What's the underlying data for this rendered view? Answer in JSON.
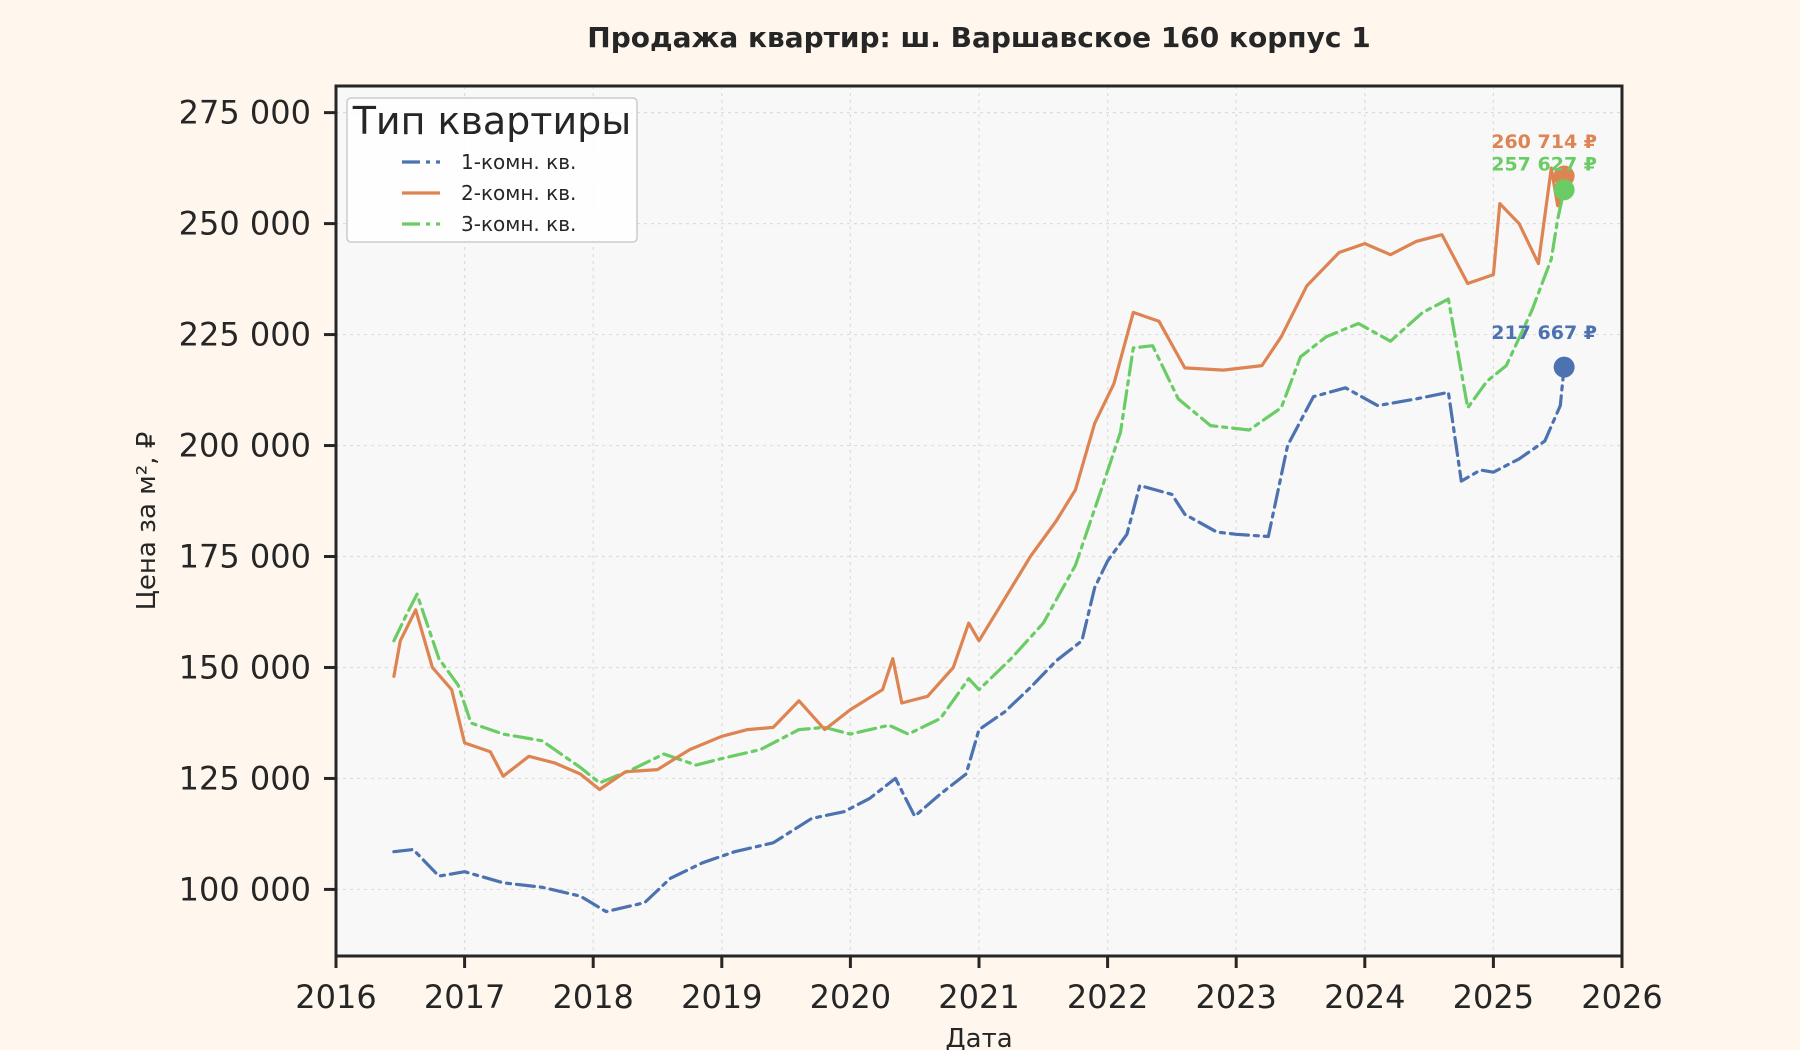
{
  "chart_data": {
    "type": "line",
    "title": "Продажа квартир: ш. Варшавское 160 корпус 1",
    "xlabel": "Дата",
    "ylabel": "Цена за м², ₽",
    "xlim": [
      2016.0,
      2026.0
    ],
    "ylim": [
      85000,
      281000
    ],
    "x_ticks": [
      2016,
      2017,
      2018,
      2019,
      2020,
      2021,
      2022,
      2023,
      2024,
      2025,
      2026
    ],
    "x_tick_labels": [
      "2016",
      "2017",
      "2018",
      "2019",
      "2020",
      "2021",
      "2022",
      "2023",
      "2024",
      "2025",
      "2026"
    ],
    "y_ticks": [
      100000,
      125000,
      150000,
      175000,
      200000,
      225000,
      250000,
      275000
    ],
    "y_tick_labels": [
      "100 000",
      "125 000",
      "150 000",
      "175 000",
      "200 000",
      "225 000",
      "250 000",
      "275 000"
    ],
    "grid": true,
    "legend": {
      "title": "Тип квартиры",
      "position": "top-left"
    },
    "series": [
      {
        "name": "1-комн. кв.",
        "color": "#4c72b0",
        "dash": "dashdot",
        "end_value": 217667,
        "end_label": "217 667 ₽",
        "points": [
          [
            2016.45,
            108500
          ],
          [
            2016.6,
            109000
          ],
          [
            2016.8,
            103000
          ],
          [
            2017.0,
            104000
          ],
          [
            2017.3,
            101500
          ],
          [
            2017.6,
            100500
          ],
          [
            2017.9,
            98500
          ],
          [
            2018.1,
            95000
          ],
          [
            2018.4,
            97000
          ],
          [
            2018.6,
            102500
          ],
          [
            2018.85,
            106000
          ],
          [
            2019.1,
            108500
          ],
          [
            2019.4,
            110500
          ],
          [
            2019.7,
            116000
          ],
          [
            2019.95,
            117500
          ],
          [
            2020.15,
            120500
          ],
          [
            2020.35,
            125000
          ],
          [
            2020.5,
            116500
          ],
          [
            2020.7,
            121500
          ],
          [
            2020.9,
            126000
          ],
          [
            2021.0,
            136000
          ],
          [
            2021.2,
            140000
          ],
          [
            2021.4,
            145500
          ],
          [
            2021.6,
            151500
          ],
          [
            2021.8,
            156000
          ],
          [
            2021.9,
            168000
          ],
          [
            2022.0,
            174000
          ],
          [
            2022.15,
            180000
          ],
          [
            2022.25,
            191000
          ],
          [
            2022.5,
            189000
          ],
          [
            2022.6,
            184500
          ],
          [
            2022.85,
            180500
          ],
          [
            2023.0,
            180000
          ],
          [
            2023.25,
            179500
          ],
          [
            2023.4,
            200000
          ],
          [
            2023.6,
            211000
          ],
          [
            2023.85,
            213000
          ],
          [
            2024.1,
            209000
          ],
          [
            2024.4,
            210500
          ],
          [
            2024.65,
            212000
          ],
          [
            2024.75,
            192000
          ],
          [
            2024.9,
            194500
          ],
          [
            2025.0,
            194000
          ],
          [
            2025.2,
            197000
          ],
          [
            2025.4,
            201000
          ],
          [
            2025.52,
            209000
          ],
          [
            2025.55,
            217667
          ]
        ]
      },
      {
        "name": "2-комн. кв.",
        "color": "#dd8452",
        "dash": "solid",
        "end_value": 260714,
        "end_label": "260 714 ₽",
        "points": [
          [
            2016.45,
            148000
          ],
          [
            2016.5,
            156000
          ],
          [
            2016.62,
            163000
          ],
          [
            2016.75,
            150000
          ],
          [
            2016.9,
            145000
          ],
          [
            2017.0,
            133000
          ],
          [
            2017.2,
            131000
          ],
          [
            2017.3,
            125500
          ],
          [
            2017.5,
            130000
          ],
          [
            2017.7,
            128500
          ],
          [
            2017.9,
            126000
          ],
          [
            2018.05,
            122500
          ],
          [
            2018.25,
            126500
          ],
          [
            2018.5,
            127000
          ],
          [
            2018.75,
            131500
          ],
          [
            2019.0,
            134500
          ],
          [
            2019.2,
            136000
          ],
          [
            2019.4,
            136500
          ],
          [
            2019.6,
            142500
          ],
          [
            2019.8,
            136000
          ],
          [
            2020.0,
            140500
          ],
          [
            2020.25,
            145000
          ],
          [
            2020.33,
            152000
          ],
          [
            2020.4,
            142000
          ],
          [
            2020.6,
            143500
          ],
          [
            2020.8,
            150000
          ],
          [
            2020.92,
            160000
          ],
          [
            2021.0,
            156000
          ],
          [
            2021.2,
            165500
          ],
          [
            2021.4,
            175000
          ],
          [
            2021.6,
            183000
          ],
          [
            2021.75,
            190000
          ],
          [
            2021.9,
            205000
          ],
          [
            2022.05,
            214000
          ],
          [
            2022.2,
            230000
          ],
          [
            2022.4,
            228000
          ],
          [
            2022.6,
            217500
          ],
          [
            2022.9,
            217000
          ],
          [
            2023.2,
            218000
          ],
          [
            2023.35,
            224500
          ],
          [
            2023.55,
            236000
          ],
          [
            2023.8,
            243500
          ],
          [
            2024.0,
            245500
          ],
          [
            2024.2,
            243000
          ],
          [
            2024.4,
            246000
          ],
          [
            2024.6,
            247500
          ],
          [
            2024.8,
            236500
          ],
          [
            2025.0,
            238500
          ],
          [
            2025.05,
            254500
          ],
          [
            2025.2,
            250000
          ],
          [
            2025.35,
            241000
          ],
          [
            2025.45,
            262500
          ],
          [
            2025.5,
            254000
          ],
          [
            2025.55,
            260714
          ]
        ]
      },
      {
        "name": "3-комн. кв.",
        "color": "#6acc64",
        "dash": "dashdot",
        "end_value": 257627,
        "end_label": "257 627 ₽",
        "points": [
          [
            2016.45,
            156000
          ],
          [
            2016.55,
            162000
          ],
          [
            2016.63,
            166500
          ],
          [
            2016.8,
            152000
          ],
          [
            2016.95,
            146000
          ],
          [
            2017.05,
            137500
          ],
          [
            2017.3,
            135000
          ],
          [
            2017.6,
            133500
          ],
          [
            2017.9,
            127500
          ],
          [
            2018.05,
            124000
          ],
          [
            2018.3,
            127000
          ],
          [
            2018.55,
            130500
          ],
          [
            2018.8,
            128000
          ],
          [
            2019.0,
            129500
          ],
          [
            2019.3,
            131500
          ],
          [
            2019.6,
            136000
          ],
          [
            2019.8,
            136500
          ],
          [
            2020.0,
            135000
          ],
          [
            2020.3,
            137000
          ],
          [
            2020.45,
            135000
          ],
          [
            2020.7,
            138500
          ],
          [
            2020.92,
            147500
          ],
          [
            2021.0,
            145000
          ],
          [
            2021.25,
            152000
          ],
          [
            2021.5,
            160000
          ],
          [
            2021.75,
            173000
          ],
          [
            2021.95,
            190000
          ],
          [
            2022.1,
            203000
          ],
          [
            2022.2,
            222000
          ],
          [
            2022.35,
            222500
          ],
          [
            2022.55,
            210500
          ],
          [
            2022.8,
            204500
          ],
          [
            2023.1,
            203500
          ],
          [
            2023.35,
            208500
          ],
          [
            2023.5,
            220000
          ],
          [
            2023.7,
            224500
          ],
          [
            2023.95,
            227500
          ],
          [
            2024.2,
            223500
          ],
          [
            2024.45,
            230000
          ],
          [
            2024.65,
            233000
          ],
          [
            2024.8,
            208500
          ],
          [
            2024.95,
            214500
          ],
          [
            2025.1,
            218000
          ],
          [
            2025.3,
            230500
          ],
          [
            2025.45,
            242000
          ],
          [
            2025.5,
            251000
          ],
          [
            2025.55,
            257627
          ]
        ]
      }
    ]
  }
}
